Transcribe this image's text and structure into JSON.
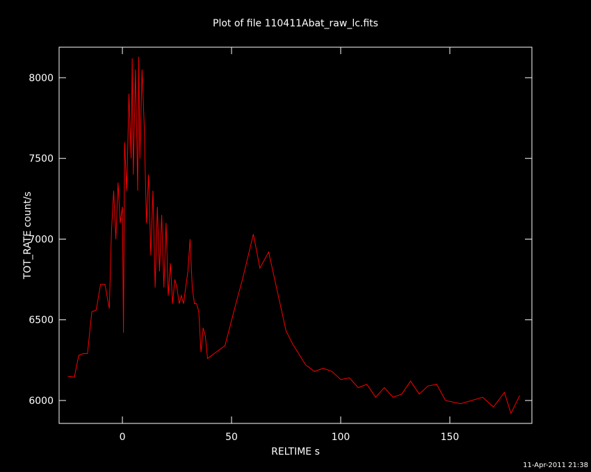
{
  "chart_data": {
    "type": "line",
    "title": "Plot of file 110411Abat_raw_lc.fits",
    "xlabel": "RELTIME  s",
    "ylabel": "TOT_RATE  count/s",
    "annotation": "11-Apr-2011 21:38",
    "color": "#ff0000",
    "xlim": [
      -29,
      187.6
    ],
    "ylim": [
      5858,
      8189
    ],
    "xticks": [
      0,
      50,
      100,
      150
    ],
    "yticks": [
      6000,
      6500,
      7000,
      7500,
      8000
    ],
    "x": [
      -25,
      -22,
      -20,
      -18,
      -16,
      -14,
      -12,
      -10,
      -8,
      -6,
      -5,
      -4,
      -3,
      -2,
      -1,
      0,
      0.5,
      1,
      2,
      3,
      4,
      4.5,
      5,
      6,
      7,
      7.5,
      8,
      9,
      10,
      11,
      12,
      13,
      14,
      15,
      16,
      17,
      18,
      19,
      20,
      21,
      22,
      23,
      24,
      25,
      26,
      27,
      28,
      29,
      30,
      31,
      32,
      33,
      34,
      35,
      36,
      37,
      38,
      39,
      45,
      47,
      52,
      55,
      60,
      63,
      67,
      75,
      78,
      84,
      88,
      92,
      96,
      100,
      104,
      108,
      112,
      116,
      120,
      124,
      128,
      132,
      136,
      140,
      144,
      148,
      155,
      160,
      165,
      170,
      175,
      178,
      182
    ],
    "values": [
      6150,
      6145,
      6280,
      6290,
      6290,
      6550,
      6560,
      6720,
      6720,
      6570,
      7050,
      7300,
      7000,
      7350,
      7100,
      7200,
      6420,
      7600,
      7300,
      7900,
      7500,
      8120,
      7400,
      8050,
      7300,
      8130,
      7500,
      8050,
      7700,
      7100,
      7400,
      6900,
      7300,
      6700,
      7200,
      6800,
      7150,
      6700,
      7100,
      6650,
      6850,
      6600,
      6750,
      6700,
      6600,
      6650,
      6600,
      6700,
      6800,
      7000,
      6700,
      6600,
      6600,
      6550,
      6300,
      6450,
      6400,
      6260,
      6320,
      6340,
      6600,
      6750,
      7030,
      6820,
      6920,
      6430,
      6350,
      6220,
      6180,
      6200,
      6180,
      6130,
      6140,
      6080,
      6100,
      6020,
      6080,
      6020,
      6040,
      6120,
      6040,
      6090,
      6100,
      6000,
      5980,
      6000,
      6020,
      5960,
      6050,
      5920,
      6030
    ]
  }
}
